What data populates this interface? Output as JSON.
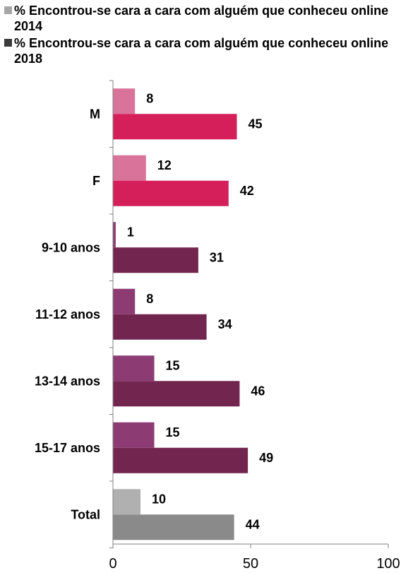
{
  "chart_data": {
    "type": "bar",
    "orientation": "horizontal",
    "categories": [
      "M",
      "F",
      "9-10 anos",
      "11-12 anos",
      "13-14 anos",
      "15-17 anos",
      "Total"
    ],
    "series": [
      {
        "name": "% Encontrou-se cara a cara com alguém que conheceu online 2014",
        "values": [
          8,
          12,
          1,
          8,
          15,
          15,
          10
        ]
      },
      {
        "name": "% Encontrou-se cara a cara com alguém que conheceu online 2018",
        "values": [
          45,
          42,
          31,
          34,
          46,
          49,
          44
        ]
      }
    ],
    "xlim": [
      0,
      100
    ],
    "xticks": [
      "0",
      "50",
      "100"
    ],
    "legend_position": "top-left",
    "legend_colors": [
      "#a6a6a6",
      "#3b3b3b"
    ],
    "bar_colors": {
      "2014": [
        "#d9739a",
        "#d9739a",
        "#8c3b73",
        "#8c3b73",
        "#8c3b73",
        "#8c3b73",
        "#b0b0b0"
      ],
      "2018": [
        "#d41f5b",
        "#d41f5b",
        "#72264f",
        "#72264f",
        "#72264f",
        "#72264f",
        "#8a8a8a"
      ]
    },
    "grid": false
  }
}
